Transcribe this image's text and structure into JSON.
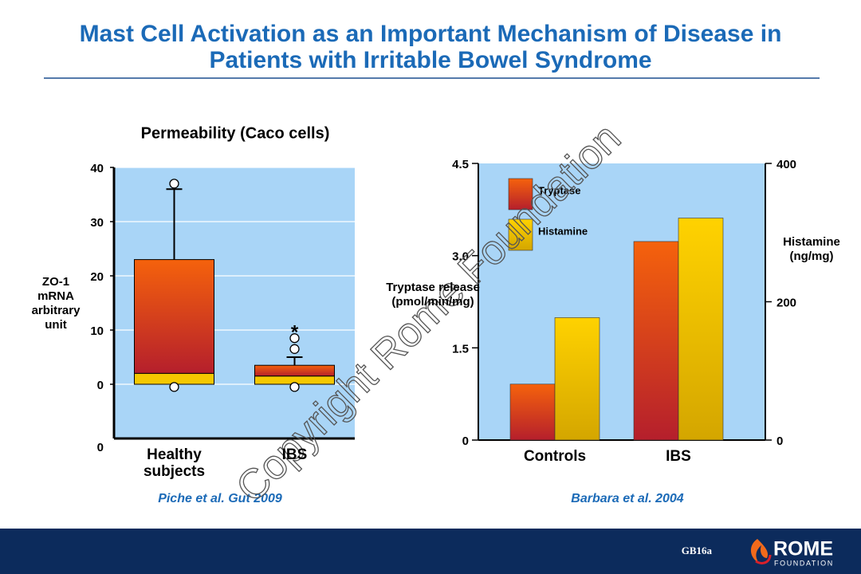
{
  "title": "Mast Cell Activation as an Important Mechanism of Disease in Patients with Irritable Bowel Syndrome",
  "chart_data": [
    {
      "type": "box",
      "title": "Permeability (Caco cells)",
      "ylabel": "ZO-1 mRNA arbitrary unit",
      "categories": [
        "Healthy subjects",
        "IBS"
      ],
      "boxes": [
        {
          "q1": 0,
          "median": 2,
          "q3": 23,
          "whisker_high": 36,
          "outliers": [
            37,
            -0.5
          ]
        },
        {
          "q1": 0,
          "median": 1.5,
          "q3": 3.5,
          "whisker_high": 5,
          "outliers": [
            8.5,
            6.5,
            -0.5
          ]
        }
      ],
      "annotation": "*",
      "ylim": [
        -10,
        40
      ],
      "yticks": [
        0,
        10,
        20,
        30,
        40
      ],
      "foot_label": "0",
      "grid": true,
      "background": "#a9d5f7",
      "color": "#f5620c",
      "color_dark": "#b51f2c",
      "median_color": "#f5c800",
      "source": "Piche et al. Gut 2009"
    },
    {
      "type": "bar",
      "categories": [
        "Controls",
        "IBS"
      ],
      "series": [
        {
          "name": "Tryptase",
          "color": "#f5620c",
          "color_dark": "#b51f2c",
          "values": [
            0.91,
            3.23
          ]
        },
        {
          "name": "Histamine",
          "color": "#ffd200",
          "color_dark": "#d4a600",
          "axis": "y2",
          "values": [
            177,
            321
          ]
        }
      ],
      "ylabel": "Tryptase release (pmol/min/mg)",
      "y2label": "Histamine (ng/mg)",
      "ylim": [
        0,
        4.5
      ],
      "yticks": [
        0,
        1.5,
        {
          "value": 3,
          "label": "3.0"
        },
        4.5
      ],
      "y2lim": [
        0,
        400
      ],
      "y2ticks": [
        0,
        200,
        400
      ],
      "legend": "upper left",
      "background": "#a9d5f7",
      "source": "Barbara et al. 2004"
    }
  ],
  "watermark": "Copyright Rome Foundation",
  "footer": {
    "code": "GB16a",
    "logo_name": "ROME",
    "logo_subtitle": "FOUNDATION"
  }
}
